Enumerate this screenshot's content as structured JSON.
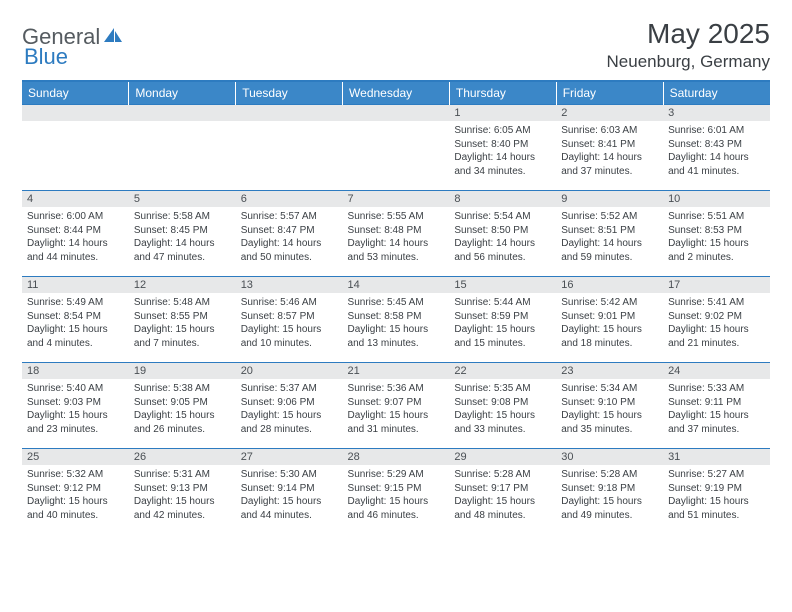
{
  "brand": {
    "part1": "General",
    "part2": "Blue"
  },
  "title": "May 2025",
  "location": "Neuenburg, Germany",
  "colors": {
    "header_bg": "#3b87c8",
    "border": "#2d7bc0",
    "daynum_bg": "#e7e8e9",
    "text": "#3a3f44",
    "logo_gray": "#555b60",
    "logo_blue": "#2d7bc0"
  },
  "weekdays": [
    "Sunday",
    "Monday",
    "Tuesday",
    "Wednesday",
    "Thursday",
    "Friday",
    "Saturday"
  ],
  "weeks": [
    [
      {
        "n": "",
        "lines": []
      },
      {
        "n": "",
        "lines": []
      },
      {
        "n": "",
        "lines": []
      },
      {
        "n": "",
        "lines": []
      },
      {
        "n": "1",
        "lines": [
          "Sunrise: 6:05 AM",
          "Sunset: 8:40 PM",
          "Daylight: 14 hours",
          "and 34 minutes."
        ]
      },
      {
        "n": "2",
        "lines": [
          "Sunrise: 6:03 AM",
          "Sunset: 8:41 PM",
          "Daylight: 14 hours",
          "and 37 minutes."
        ]
      },
      {
        "n": "3",
        "lines": [
          "Sunrise: 6:01 AM",
          "Sunset: 8:43 PM",
          "Daylight: 14 hours",
          "and 41 minutes."
        ]
      }
    ],
    [
      {
        "n": "4",
        "lines": [
          "Sunrise: 6:00 AM",
          "Sunset: 8:44 PM",
          "Daylight: 14 hours",
          "and 44 minutes."
        ]
      },
      {
        "n": "5",
        "lines": [
          "Sunrise: 5:58 AM",
          "Sunset: 8:45 PM",
          "Daylight: 14 hours",
          "and 47 minutes."
        ]
      },
      {
        "n": "6",
        "lines": [
          "Sunrise: 5:57 AM",
          "Sunset: 8:47 PM",
          "Daylight: 14 hours",
          "and 50 minutes."
        ]
      },
      {
        "n": "7",
        "lines": [
          "Sunrise: 5:55 AM",
          "Sunset: 8:48 PM",
          "Daylight: 14 hours",
          "and 53 minutes."
        ]
      },
      {
        "n": "8",
        "lines": [
          "Sunrise: 5:54 AM",
          "Sunset: 8:50 PM",
          "Daylight: 14 hours",
          "and 56 minutes."
        ]
      },
      {
        "n": "9",
        "lines": [
          "Sunrise: 5:52 AM",
          "Sunset: 8:51 PM",
          "Daylight: 14 hours",
          "and 59 minutes."
        ]
      },
      {
        "n": "10",
        "lines": [
          "Sunrise: 5:51 AM",
          "Sunset: 8:53 PM",
          "Daylight: 15 hours",
          "and 2 minutes."
        ]
      }
    ],
    [
      {
        "n": "11",
        "lines": [
          "Sunrise: 5:49 AM",
          "Sunset: 8:54 PM",
          "Daylight: 15 hours",
          "and 4 minutes."
        ]
      },
      {
        "n": "12",
        "lines": [
          "Sunrise: 5:48 AM",
          "Sunset: 8:55 PM",
          "Daylight: 15 hours",
          "and 7 minutes."
        ]
      },
      {
        "n": "13",
        "lines": [
          "Sunrise: 5:46 AM",
          "Sunset: 8:57 PM",
          "Daylight: 15 hours",
          "and 10 minutes."
        ]
      },
      {
        "n": "14",
        "lines": [
          "Sunrise: 5:45 AM",
          "Sunset: 8:58 PM",
          "Daylight: 15 hours",
          "and 13 minutes."
        ]
      },
      {
        "n": "15",
        "lines": [
          "Sunrise: 5:44 AM",
          "Sunset: 8:59 PM",
          "Daylight: 15 hours",
          "and 15 minutes."
        ]
      },
      {
        "n": "16",
        "lines": [
          "Sunrise: 5:42 AM",
          "Sunset: 9:01 PM",
          "Daylight: 15 hours",
          "and 18 minutes."
        ]
      },
      {
        "n": "17",
        "lines": [
          "Sunrise: 5:41 AM",
          "Sunset: 9:02 PM",
          "Daylight: 15 hours",
          "and 21 minutes."
        ]
      }
    ],
    [
      {
        "n": "18",
        "lines": [
          "Sunrise: 5:40 AM",
          "Sunset: 9:03 PM",
          "Daylight: 15 hours",
          "and 23 minutes."
        ]
      },
      {
        "n": "19",
        "lines": [
          "Sunrise: 5:38 AM",
          "Sunset: 9:05 PM",
          "Daylight: 15 hours",
          "and 26 minutes."
        ]
      },
      {
        "n": "20",
        "lines": [
          "Sunrise: 5:37 AM",
          "Sunset: 9:06 PM",
          "Daylight: 15 hours",
          "and 28 minutes."
        ]
      },
      {
        "n": "21",
        "lines": [
          "Sunrise: 5:36 AM",
          "Sunset: 9:07 PM",
          "Daylight: 15 hours",
          "and 31 minutes."
        ]
      },
      {
        "n": "22",
        "lines": [
          "Sunrise: 5:35 AM",
          "Sunset: 9:08 PM",
          "Daylight: 15 hours",
          "and 33 minutes."
        ]
      },
      {
        "n": "23",
        "lines": [
          "Sunrise: 5:34 AM",
          "Sunset: 9:10 PM",
          "Daylight: 15 hours",
          "and 35 minutes."
        ]
      },
      {
        "n": "24",
        "lines": [
          "Sunrise: 5:33 AM",
          "Sunset: 9:11 PM",
          "Daylight: 15 hours",
          "and 37 minutes."
        ]
      }
    ],
    [
      {
        "n": "25",
        "lines": [
          "Sunrise: 5:32 AM",
          "Sunset: 9:12 PM",
          "Daylight: 15 hours",
          "and 40 minutes."
        ]
      },
      {
        "n": "26",
        "lines": [
          "Sunrise: 5:31 AM",
          "Sunset: 9:13 PM",
          "Daylight: 15 hours",
          "and 42 minutes."
        ]
      },
      {
        "n": "27",
        "lines": [
          "Sunrise: 5:30 AM",
          "Sunset: 9:14 PM",
          "Daylight: 15 hours",
          "and 44 minutes."
        ]
      },
      {
        "n": "28",
        "lines": [
          "Sunrise: 5:29 AM",
          "Sunset: 9:15 PM",
          "Daylight: 15 hours",
          "and 46 minutes."
        ]
      },
      {
        "n": "29",
        "lines": [
          "Sunrise: 5:28 AM",
          "Sunset: 9:17 PM",
          "Daylight: 15 hours",
          "and 48 minutes."
        ]
      },
      {
        "n": "30",
        "lines": [
          "Sunrise: 5:28 AM",
          "Sunset: 9:18 PM",
          "Daylight: 15 hours",
          "and 49 minutes."
        ]
      },
      {
        "n": "31",
        "lines": [
          "Sunrise: 5:27 AM",
          "Sunset: 9:19 PM",
          "Daylight: 15 hours",
          "and 51 minutes."
        ]
      }
    ]
  ]
}
